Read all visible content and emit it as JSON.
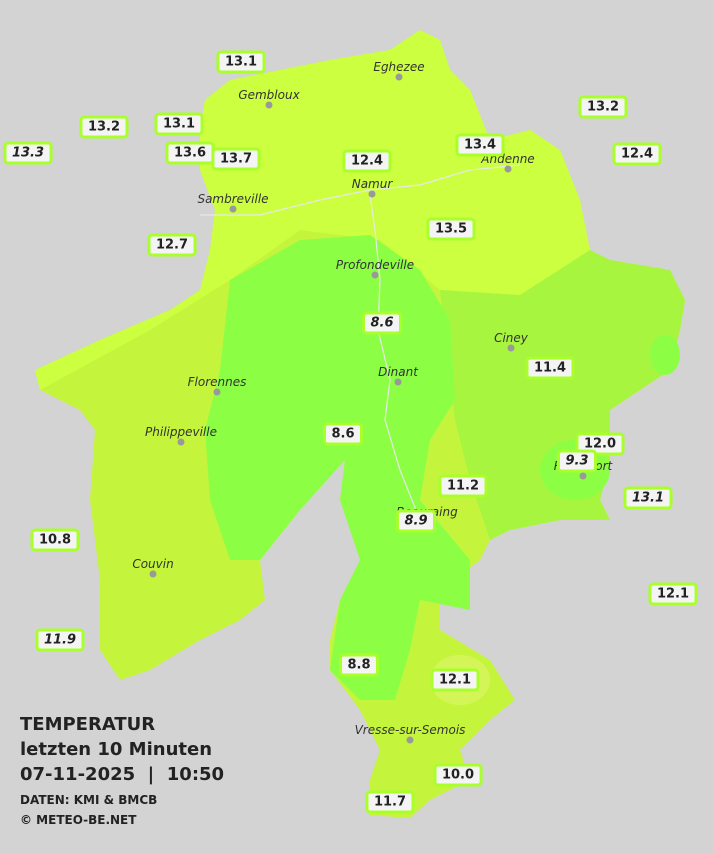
{
  "title": {
    "lines": [
      "TEMPERATUR",
      "letzten 10 Minuten",
      "07-11-2025  |  10:50"
    ],
    "credits": [
      "DATEN: KMI & BMCB",
      "© METEO-BE.NET"
    ]
  },
  "cities": [
    "Eghezee",
    "Gembloux",
    "Andenne",
    "Namur",
    "Sambreville",
    "Profondeville",
    "Ciney",
    "Dinant",
    "Florennes",
    "Philippeville",
    "Rochefort",
    "Beauraing",
    "Couvin",
    "Vresse-sur-Semois"
  ],
  "stations": [
    {
      "label": "13.1"
    },
    {
      "label": "13.2"
    },
    {
      "label": "13.1"
    },
    {
      "label": "13.3",
      "italic": true
    },
    {
      "label": "13.6"
    },
    {
      "label": "13.7"
    },
    {
      "label": "12.4"
    },
    {
      "label": "13.4"
    },
    {
      "label": "13.2"
    },
    {
      "label": "12.4"
    },
    {
      "label": "13.5"
    },
    {
      "label": "12.7"
    },
    {
      "label": "8.6",
      "italic": true
    },
    {
      "label": "11.4"
    },
    {
      "label": "8.6"
    },
    {
      "label": "12.0"
    },
    {
      "label": "9.3",
      "italic": true
    },
    {
      "label": "11.2"
    },
    {
      "label": "13.1",
      "italic": true
    },
    {
      "label": "8.9",
      "italic": true
    },
    {
      "label": "10.8"
    },
    {
      "label": "12.1"
    },
    {
      "label": "11.9",
      "italic": true
    },
    {
      "label": "8.8"
    },
    {
      "label": "12.1"
    },
    {
      "label": "10.0"
    },
    {
      "label": "11.7"
    }
  ]
}
